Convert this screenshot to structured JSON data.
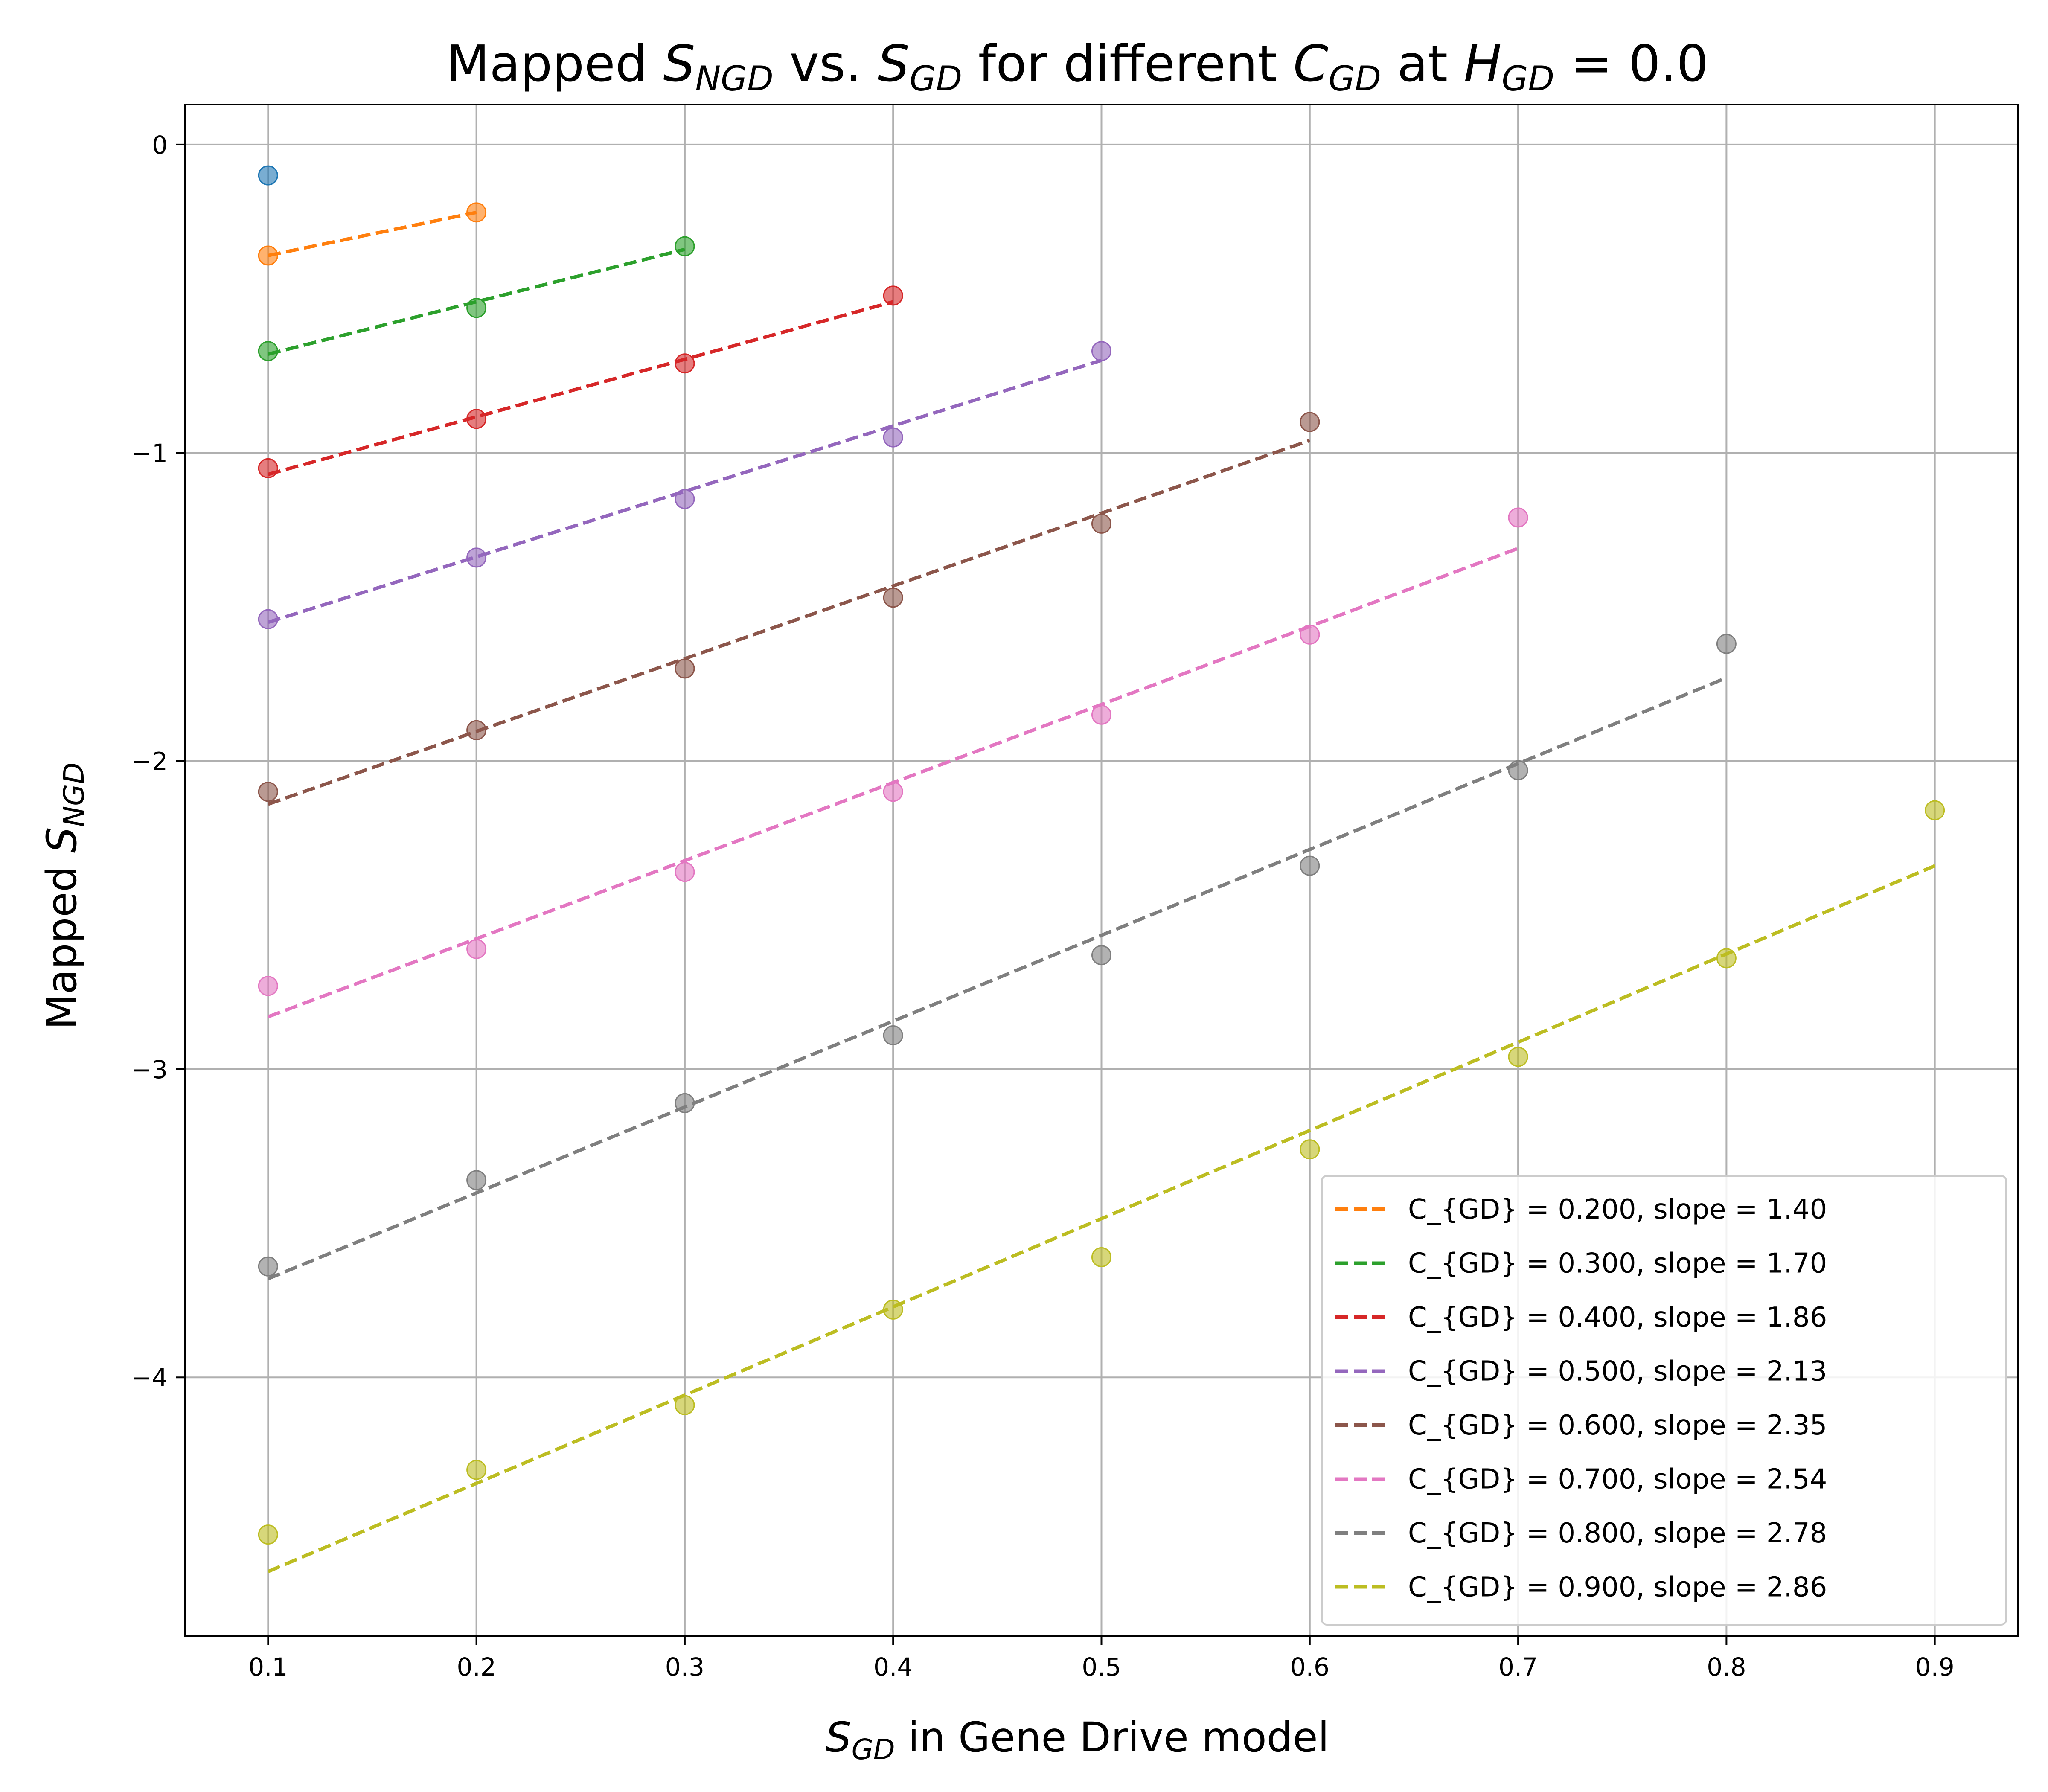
{
  "chart_data": {
    "type": "scatter",
    "title": {
      "before": "Mapped ",
      "var1": "S",
      "var1_sub": "NGD",
      "mid1": " vs. ",
      "var2": "S",
      "var2_sub": "GD",
      "mid2": " for different ",
      "var3": "C",
      "var3_sub": "GD",
      "mid3": " at ",
      "var4": "H",
      "var4_sub": "GD",
      "after": " = 0.0"
    },
    "xlabel": {
      "var": "S",
      "sub": "GD",
      "text": " in Gene Drive model"
    },
    "ylabel": {
      "text": "Mapped ",
      "var": "S",
      "sub": "NGD"
    },
    "xlim": [
      0.06,
      0.94
    ],
    "ylim": [
      -4.84,
      0.13
    ],
    "xticks": [
      "0.1",
      "0.2",
      "0.3",
      "0.4",
      "0.5",
      "0.6",
      "0.7",
      "0.8",
      "0.9"
    ],
    "xtick_values": [
      0.1,
      0.2,
      0.3,
      0.4,
      0.5,
      0.6,
      0.7,
      0.8,
      0.9
    ],
    "yticks": [
      "0",
      "−1",
      "−2",
      "−3",
      "−4"
    ],
    "ytick_values": [
      0,
      -1,
      -2,
      -3,
      -4
    ],
    "grid": true,
    "legend_position": "lower-right",
    "series": [
      {
        "color": "#1f77b4",
        "x": [
          0.1
        ],
        "y": [
          -0.1
        ],
        "fit": null
      },
      {
        "name": "C_{GD} = 0.200, slope = 1.40",
        "color": "#ff7f0e",
        "x": [
          0.1,
          0.2
        ],
        "y": [
          -0.36,
          -0.22
        ],
        "fit": {
          "x": [
            0.1,
            0.2
          ],
          "y": [
            -0.36,
            -0.22
          ]
        }
      },
      {
        "name": "C_{GD} = 0.300, slope = 1.70",
        "color": "#2ca02c",
        "x": [
          0.1,
          0.2,
          0.3
        ],
        "y": [
          -0.67,
          -0.53,
          -0.33
        ],
        "fit": {
          "x": [
            0.1,
            0.3
          ],
          "y": [
            -0.68,
            -0.34
          ]
        }
      },
      {
        "name": "C_{GD} = 0.400, slope = 1.86",
        "color": "#d62728",
        "x": [
          0.1,
          0.2,
          0.3,
          0.4
        ],
        "y": [
          -1.05,
          -0.89,
          -0.71,
          -0.49
        ],
        "fit": {
          "x": [
            0.1,
            0.4
          ],
          "y": [
            -1.07,
            -0.51
          ]
        }
      },
      {
        "name": "C_{GD} = 0.500, slope = 2.13",
        "color": "#9467bd",
        "x": [
          0.1,
          0.2,
          0.3,
          0.4,
          0.5
        ],
        "y": [
          -1.54,
          -1.34,
          -1.15,
          -0.95,
          -0.67
        ],
        "fit": {
          "x": [
            0.1,
            0.5
          ],
          "y": [
            -1.55,
            -0.7
          ]
        }
      },
      {
        "name": "C_{GD} = 0.600, slope = 2.35",
        "color": "#8c564b",
        "x": [
          0.1,
          0.2,
          0.3,
          0.4,
          0.5,
          0.6
        ],
        "y": [
          -2.1,
          -1.9,
          -1.7,
          -1.47,
          -1.23,
          -0.9
        ],
        "fit": {
          "x": [
            0.1,
            0.6
          ],
          "y": [
            -2.14,
            -0.96
          ]
        }
      },
      {
        "name": "C_{GD} = 0.700, slope = 2.54",
        "color": "#e377c2",
        "x": [
          0.1,
          0.2,
          0.3,
          0.4,
          0.5,
          0.6,
          0.7
        ],
        "y": [
          -2.73,
          -2.61,
          -2.36,
          -2.1,
          -1.85,
          -1.59,
          -1.21
        ],
        "fit": {
          "x": [
            0.1,
            0.7
          ],
          "y": [
            -2.83,
            -1.31
          ]
        }
      },
      {
        "name": "C_{GD} = 0.800, slope = 2.78",
        "color": "#7f7f7f",
        "x": [
          0.1,
          0.2,
          0.3,
          0.4,
          0.5,
          0.6,
          0.7,
          0.8
        ],
        "y": [
          -3.64,
          -3.36,
          -3.11,
          -2.89,
          -2.63,
          -2.34,
          -2.03,
          -1.62
        ],
        "fit": {
          "x": [
            0.1,
            0.8
          ],
          "y": [
            -3.68,
            -1.73
          ]
        }
      },
      {
        "name": "C_{GD} = 0.900, slope = 2.86",
        "color": "#bcbd22",
        "x": [
          0.1,
          0.2,
          0.3,
          0.4,
          0.5,
          0.6,
          0.7,
          0.8,
          0.9
        ],
        "y": [
          -4.51,
          -4.3,
          -4.09,
          -3.78,
          -3.61,
          -3.26,
          -2.96,
          -2.64,
          -2.16
        ],
        "fit": {
          "x": [
            0.1,
            0.9
          ],
          "y": [
            -4.63,
            -2.34
          ]
        }
      }
    ]
  }
}
